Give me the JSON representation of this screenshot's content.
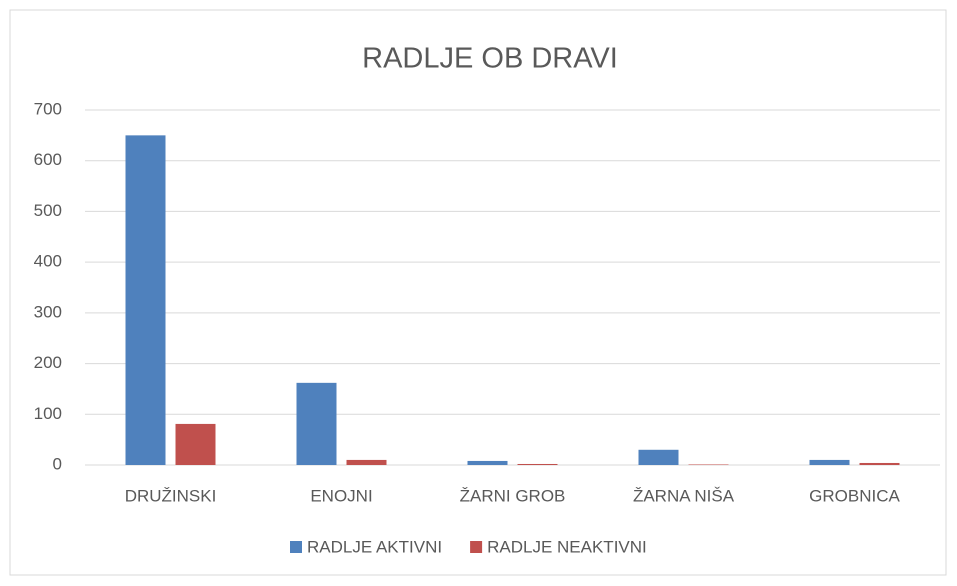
{
  "chart_data": {
    "type": "bar",
    "title": "RADLJE OB DRAVI",
    "categories": [
      "DRUŽINSKI",
      "ENOJNI",
      "ŽARNI GROB",
      "ŽARNA NIŠA",
      "GROBNICA"
    ],
    "series": [
      {
        "name": "RADLJE AKTIVNI",
        "color": "#4f81bd",
        "values": [
          650,
          162,
          8,
          30,
          10
        ]
      },
      {
        "name": "RADLJE NEAKTIVNI",
        "color": "#c0504d",
        "values": [
          81,
          10,
          2,
          1,
          4
        ]
      }
    ],
    "ylim": [
      0,
      700
    ],
    "yticks": [
      0,
      100,
      200,
      300,
      400,
      500,
      600,
      700
    ],
    "grid": true,
    "legend": "bottom"
  }
}
